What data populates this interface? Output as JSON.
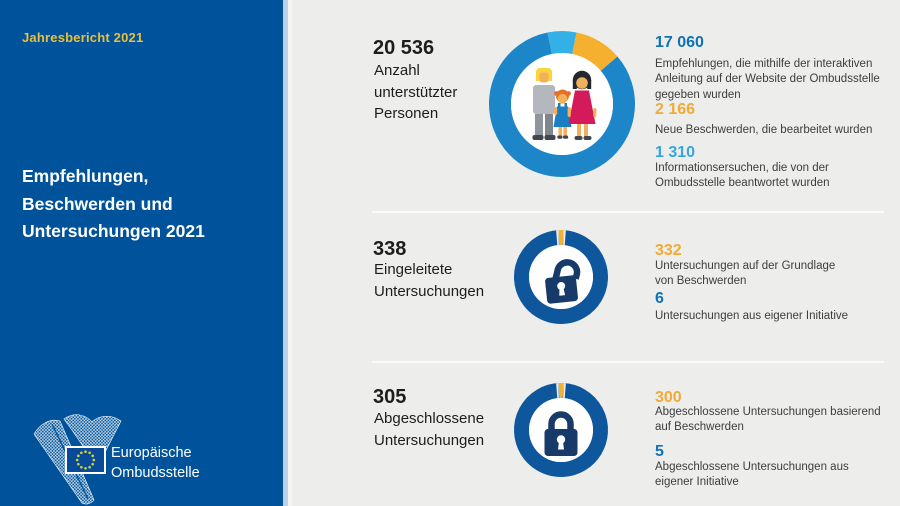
{
  "sidebar": {
    "report_label": "Jahresbericht 2021",
    "title": "Empfehlungen,\nBeschwerden und\nUntersuchungen 2021",
    "logo": {
      "org_name": "Europäische\nOmbudsstelle"
    }
  },
  "rows": [
    {
      "value": "20 536",
      "label": "Anzahl\nunterstützter\nPersonen",
      "icon": "family-donut-chart",
      "stats": [
        {
          "value": "17 060",
          "color": "#0e72b5",
          "desc": "Empfehlungen, die mithilfe der interaktiven\nAnleitung auf der Website der Ombudsstelle\ngegeben wurden"
        },
        {
          "value": "2 166",
          "color": "#f0aa36",
          "desc": "Neue Beschwerden, die bearbeitet wurden"
        },
        {
          "value": "1 310",
          "color": "#39a5db",
          "desc": "Informationsersuchen, die von der\nOmbudsstelle beantwortet wurden"
        }
      ]
    },
    {
      "value": "338",
      "label": "Eingeleitete\nUntersuchungen",
      "icon": "open-padlock-ring",
      "stats": [
        {
          "value": "332",
          "color": "#f0aa36",
          "desc": "Untersuchungen auf der Grundlage\nvon Beschwerden"
        },
        {
          "value": "6",
          "color": "#0e72b5",
          "desc": "Untersuchungen aus eigener Initiative"
        }
      ]
    },
    {
      "value": "305",
      "label": "Abgeschlossene\nUntersuchungen",
      "icon": "closed-padlock-ring",
      "stats": [
        {
          "value": "300",
          "color": "#f0aa36",
          "desc": "Abgeschlossene Untersuchungen basierend\nauf Beschwerden"
        },
        {
          "value": "5",
          "color": "#0e72b5",
          "desc": "Abgeschlossene Untersuchungen aus\neigener Initiative"
        }
      ]
    }
  ],
  "chart_data": [
    {
      "type": "pie",
      "title": "Anzahl unterstützter Personen",
      "total": 20536,
      "slices": [
        {
          "label": "Empfehlungen über die interaktive Anleitung",
          "value": 17060,
          "color": "#1c86c8"
        },
        {
          "label": "Neue bearbeitete Beschwerden",
          "value": 2166,
          "color": "#f5b02f"
        },
        {
          "label": "Beantwortete Informationsersuchen",
          "value": 1310,
          "color": "#33b1e6"
        }
      ],
      "draw_order": [
        2,
        1,
        0
      ],
      "legend": "none",
      "donut": true
    },
    {
      "type": "pie",
      "title": "Eingeleitete Untersuchungen",
      "total": 338,
      "slices": [
        {
          "label": "Auf der Grundlage von Beschwerden",
          "value": 332,
          "color": "#0f579c"
        },
        {
          "label": "Aus eigener Initiative",
          "value": 6,
          "color": "#f2b233"
        }
      ],
      "draw_order": [
        1,
        0
      ],
      "legend": "none",
      "donut": true
    },
    {
      "type": "pie",
      "title": "Abgeschlossene Untersuchungen",
      "total": 305,
      "slices": [
        {
          "label": "Basierend auf Beschwerden",
          "value": 300,
          "color": "#0f579c"
        },
        {
          "label": "Aus eigener Initiative",
          "value": 5,
          "color": "#f2b233"
        }
      ],
      "draw_order": [
        1,
        0
      ],
      "legend": "none",
      "donut": true
    }
  ],
  "colors": {
    "sidebar_blue": "#00539b",
    "background_gray": "#ededec",
    "accent_gold": "#e9bf3b",
    "stat_blue": "#0e72b5",
    "stat_orange": "#f0aa36",
    "stat_lightblue": "#39a5db",
    "lock_navy": "#183a68"
  }
}
